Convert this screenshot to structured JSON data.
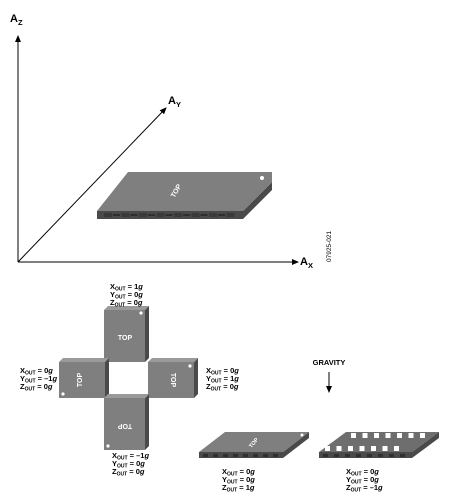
{
  "axes": {
    "z": {
      "main": "A",
      "sub": "Z"
    },
    "y": {
      "main": "A",
      "sub": "Y"
    },
    "x": {
      "main": "A",
      "sub": "X"
    }
  },
  "figure_id": "07925-021",
  "top_label": "TOP",
  "gravity_label": "GRAVITY",
  "readings": {
    "top": [
      {
        "axis": "X",
        "sub": "OUT",
        "value": " = 1",
        "unit": "g"
      },
      {
        "axis": "Y",
        "sub": "OUT",
        "value": " = 0",
        "unit": "g"
      },
      {
        "axis": "Z",
        "sub": "OUT",
        "value": " = 0",
        "unit": "g"
      }
    ],
    "left": [
      {
        "axis": "X",
        "sub": "OUT",
        "value": " = 0",
        "unit": "g"
      },
      {
        "axis": "Y",
        "sub": "OUT",
        "value": " = –1",
        "unit": "g"
      },
      {
        "axis": "Z",
        "sub": "OUT",
        "value": " = 0",
        "unit": "g"
      }
    ],
    "right": [
      {
        "axis": "X",
        "sub": "OUT",
        "value": " = 0",
        "unit": "g"
      },
      {
        "axis": "Y",
        "sub": "OUT",
        "value": " = 1",
        "unit": "g"
      },
      {
        "axis": "Z",
        "sub": "OUT",
        "value": " = 0",
        "unit": "g"
      }
    ],
    "bottom": [
      {
        "axis": "X",
        "sub": "OUT",
        "value": " = –1",
        "unit": "g"
      },
      {
        "axis": "Y",
        "sub": "OUT",
        "value": " = 0",
        "unit": "g"
      },
      {
        "axis": "Z",
        "sub": "OUT",
        "value": " = 0",
        "unit": "g"
      }
    ],
    "flat_up": [
      {
        "axis": "X",
        "sub": "OUT",
        "value": " = 0",
        "unit": "g"
      },
      {
        "axis": "Y",
        "sub": "OUT",
        "value": " = 0",
        "unit": "g"
      },
      {
        "axis": "Z",
        "sub": "OUT",
        "value": " = 1",
        "unit": "g"
      }
    ],
    "flat_down": [
      {
        "axis": "X",
        "sub": "OUT",
        "value": " = 0",
        "unit": "g"
      },
      {
        "axis": "Y",
        "sub": "OUT",
        "value": " = 0",
        "unit": "g"
      },
      {
        "axis": "Z",
        "sub": "OUT",
        "value": " = –1",
        "unit": "g"
      }
    ]
  },
  "colors": {
    "chip_top": "#7f7f7f",
    "chip_side": "#4a4a4a",
    "chip_dark": "#3a3a3a",
    "pad": "#ffffff",
    "line": "#000000"
  }
}
